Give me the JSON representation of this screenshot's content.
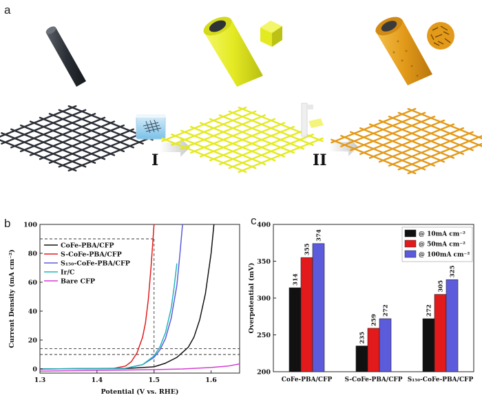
{
  "panel_a": {
    "label": "a",
    "steps": [
      "I",
      "II"
    ],
    "colors": {
      "bare": "#2b2f36",
      "pba": "#e4ea22",
      "sulfide": "#e39a1a"
    },
    "icons": [
      "carbon-fiber-rod-icon",
      "carbon-fiber-mesh-icon",
      "immersion-beaker-icon",
      "coated-rod-icon",
      "pba-cube-icon",
      "coated-mesh-icon",
      "vial-icon",
      "sulfurized-rod-icon",
      "nanosheet-cluster-icon",
      "sulfurized-mesh-icon",
      "arrow-icon"
    ]
  },
  "panel_b": {
    "label": "b",
    "series_colors": [
      "#111111",
      "#e31a1c",
      "#5b5bdc",
      "#1fb5b5",
      "#d43cd4"
    ]
  },
  "panel_c": {
    "label": "c",
    "bar_colors": [
      "#111111",
      "#e31a1c",
      "#5b5bdc"
    ]
  },
  "chart_data": [
    {
      "type": "line",
      "title": "",
      "xlabel": "Potential (V vs. RHE)",
      "ylabel": "Current Density (mA cm⁻²)",
      "xlim": [
        1.3,
        1.65
      ],
      "ylim": [
        0,
        100
      ],
      "xticks": [
        "1.3",
        "1.4",
        "1.5",
        "1.6"
      ],
      "yticks": [
        "0",
        "20",
        "40",
        "60",
        "80",
        "100"
      ],
      "legend": [
        "CoFe-PBA/CFP",
        "S-CoFe-PBA/CFP",
        "S₁₅₀-CoFe-PBA/CFP",
        "Ir/C",
        "Bare CFP"
      ],
      "legend_position": "top-left",
      "reference_lines": {
        "horizontal": [
          90,
          14,
          10
        ],
        "vertical": [
          1.5
        ]
      },
      "series": [
        {
          "name": "CoFe-PBA/CFP",
          "x": [
            1.3,
            1.45,
            1.5,
            1.52,
            1.54,
            1.56,
            1.57,
            1.58,
            1.59,
            1.6,
            1.605
          ],
          "y": [
            0,
            0.3,
            1.5,
            4,
            8,
            15,
            22,
            34,
            52,
            80,
            100
          ]
        },
        {
          "name": "S-CoFe-PBA/CFP",
          "x": [
            1.3,
            1.43,
            1.45,
            1.46,
            1.47,
            1.48,
            1.485,
            1.49,
            1.495,
            1.5
          ],
          "y": [
            0,
            0.5,
            2,
            5,
            11,
            22,
            32,
            48,
            72,
            100
          ]
        },
        {
          "name": "S₁₅₀-CoFe-PBA/CFP",
          "x": [
            1.3,
            1.45,
            1.48,
            1.5,
            1.51,
            1.52,
            1.53,
            1.54,
            1.545,
            1.55
          ],
          "y": [
            0,
            0.5,
            3,
            8,
            13,
            21,
            35,
            58,
            78,
            100
          ]
        },
        {
          "name": "Ir/C",
          "x": [
            1.3,
            1.45,
            1.48,
            1.5,
            1.51,
            1.52,
            1.53,
            1.535,
            1.54
          ],
          "y": [
            0,
            0.5,
            3,
            9,
            15,
            25,
            42,
            56,
            73
          ]
        },
        {
          "name": "Bare CFP",
          "x": [
            1.3,
            1.4,
            1.5,
            1.55,
            1.6,
            1.63,
            1.65
          ],
          "y": [
            -1.5,
            -1,
            -0.5,
            0,
            1,
            2,
            3.5
          ]
        }
      ]
    },
    {
      "type": "bar",
      "title": "",
      "xlabel": "",
      "ylabel": "Overpotential (mV)",
      "ylim": [
        200,
        400
      ],
      "yticks": [
        "200",
        "250",
        "300",
        "350",
        "400"
      ],
      "categories": [
        "CoFe-PBA/CFP",
        "S-CoFe-PBA/CFP",
        "S₁₅₀-CoFe-PBA/CFP"
      ],
      "legend_position": "top-right",
      "series": [
        {
          "name": "@ 10mA cm⁻²",
          "values": [
            314,
            235,
            272
          ]
        },
        {
          "name": "@ 50mA cm⁻²",
          "values": [
            355,
            259,
            305
          ]
        },
        {
          "name": "@ 100mA cm⁻²",
          "values": [
            374,
            272,
            325
          ]
        }
      ]
    }
  ]
}
